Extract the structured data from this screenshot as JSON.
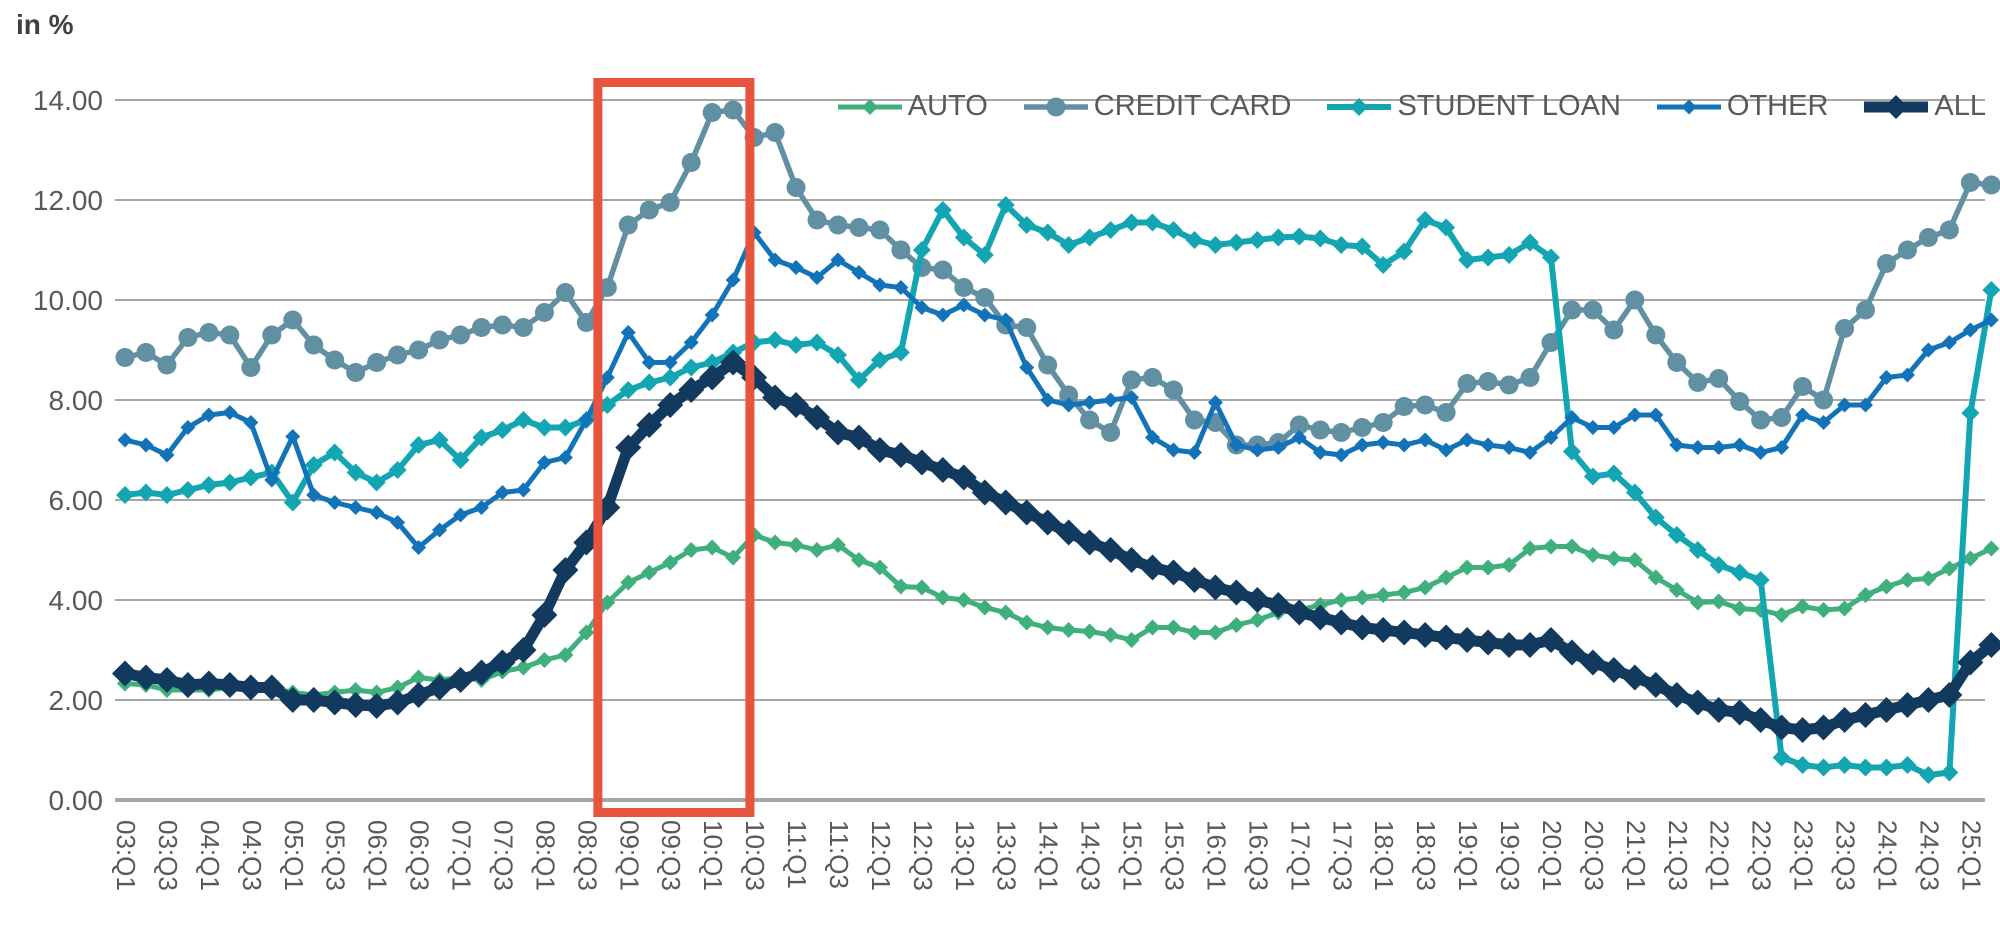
{
  "chart_data": {
    "type": "line",
    "title": "in %",
    "xlabel": "",
    "ylabel": "in %",
    "ylim": [
      0,
      14
    ],
    "grid": true,
    "legend_position": "top-right-inside",
    "grid_color": "#a6a6a6",
    "axis_text_color": "#595959",
    "y_tick_labels": [
      "0.00",
      "2.00",
      "4.00",
      "6.00",
      "8.00",
      "10.00",
      "12.00",
      "14.00"
    ],
    "categories": [
      "03:Q1",
      "03:Q2",
      "03:Q3",
      "03:Q4",
      "04:Q1",
      "04:Q2",
      "04:Q3",
      "04:Q4",
      "05:Q1",
      "05:Q2",
      "05:Q3",
      "05:Q4",
      "06:Q1",
      "06:Q2",
      "06:Q3",
      "06:Q4",
      "07:Q1",
      "07:Q2",
      "07:Q3",
      "07:Q4",
      "08:Q1",
      "08:Q2",
      "08:Q3",
      "08:Q4",
      "09:Q1",
      "09:Q2",
      "09:Q3",
      "09:Q4",
      "10:Q1",
      "10:Q2",
      "10:Q3",
      "10:Q4",
      "11:Q1",
      "11:Q2",
      "11:Q3",
      "11:Q4",
      "12:Q1",
      "12:Q2",
      "12:Q3",
      "12:Q4",
      "13:Q1",
      "13:Q2",
      "13:Q3",
      "13:Q4",
      "14:Q1",
      "14:Q2",
      "14:Q3",
      "14:Q4",
      "15:Q1",
      "15:Q2",
      "15:Q3",
      "15:Q4",
      "16:Q1",
      "16:Q2",
      "16:Q3",
      "16:Q4",
      "17:Q1",
      "17:Q2",
      "17:Q3",
      "17:Q4",
      "18:Q1",
      "18:Q2",
      "18:Q3",
      "18:Q4",
      "19:Q1",
      "19:Q2",
      "19:Q3",
      "19:Q4",
      "20:Q1",
      "20:Q2",
      "20:Q3",
      "20:Q4",
      "21:Q1",
      "21:Q2",
      "21:Q3",
      "21:Q4",
      "22:Q1",
      "22:Q2",
      "22:Q3",
      "22:Q4",
      "23:Q1",
      "23:Q2",
      "23:Q3",
      "23:Q4",
      "24:Q1",
      "24:Q2",
      "24:Q3",
      "24:Q4",
      "25:Q1",
      "25:Q2"
    ],
    "x_tick_every": 2,
    "series": [
      {
        "id": "auto",
        "name": "AUTO",
        "color": "#3fb07c",
        "marker": "diamond",
        "marker_size": 8,
        "line_width": 5,
        "values": [
          2.33,
          2.3,
          2.2,
          2.2,
          2.2,
          2.25,
          2.2,
          2.25,
          2.15,
          2.1,
          2.15,
          2.2,
          2.15,
          2.25,
          2.45,
          2.4,
          2.45,
          2.4,
          2.57,
          2.65,
          2.8,
          2.9,
          3.35,
          3.95,
          4.35,
          4.55,
          4.75,
          5.0,
          5.05,
          4.85,
          5.3,
          5.15,
          5.1,
          5.0,
          5.1,
          4.8,
          4.65,
          4.27,
          4.25,
          4.05,
          4.0,
          3.85,
          3.75,
          3.55,
          3.45,
          3.4,
          3.37,
          3.3,
          3.2,
          3.45,
          3.45,
          3.35,
          3.35,
          3.5,
          3.6,
          3.75,
          3.8,
          3.9,
          4.0,
          4.05,
          4.1,
          4.15,
          4.25,
          4.45,
          4.65,
          4.65,
          4.7,
          5.03,
          5.07,
          5.07,
          4.9,
          4.83,
          4.8,
          4.45,
          4.2,
          3.95,
          3.97,
          3.83,
          3.8,
          3.7,
          3.87,
          3.8,
          3.83,
          4.1,
          4.27,
          4.4,
          4.43,
          4.63,
          4.83,
          5.03
        ]
      },
      {
        "id": "credit-card",
        "name": "CREDIT CARD",
        "color": "#6190a3",
        "marker": "circle",
        "marker_size": 9.5,
        "line_width": 5.5,
        "values": [
          8.85,
          8.95,
          8.7,
          9.25,
          9.35,
          9.3,
          8.65,
          9.3,
          9.6,
          9.1,
          8.8,
          8.55,
          8.75,
          8.9,
          9.0,
          9.2,
          9.3,
          9.45,
          9.5,
          9.45,
          9.75,
          10.15,
          9.55,
          10.25,
          11.5,
          11.8,
          11.95,
          12.75,
          13.75,
          13.8,
          13.25,
          13.35,
          12.25,
          11.6,
          11.5,
          11.45,
          11.4,
          11.0,
          10.65,
          10.6,
          10.25,
          10.05,
          9.5,
          9.45,
          8.7,
          8.1,
          7.6,
          7.35,
          8.4,
          8.45,
          8.2,
          7.6,
          7.55,
          7.1,
          7.1,
          7.15,
          7.5,
          7.4,
          7.35,
          7.45,
          7.55,
          7.87,
          7.9,
          7.75,
          8.33,
          8.37,
          8.3,
          8.45,
          9.15,
          9.8,
          9.8,
          9.4,
          10.0,
          9.3,
          8.75,
          8.35,
          8.43,
          7.97,
          7.6,
          7.65,
          8.27,
          8.0,
          9.43,
          9.8,
          10.73,
          11.0,
          11.25,
          11.4,
          12.35,
          12.3
        ]
      },
      {
        "id": "student-loan",
        "name": "STUDENT LOAN",
        "color": "#14a5b3",
        "marker": "diamond",
        "marker_size": 9,
        "line_width": 6,
        "values": [
          6.1,
          6.15,
          6.1,
          6.2,
          6.3,
          6.35,
          6.45,
          6.55,
          5.95,
          6.7,
          6.95,
          6.55,
          6.35,
          6.6,
          7.1,
          7.2,
          6.8,
          7.25,
          7.4,
          7.6,
          7.45,
          7.45,
          7.6,
          7.9,
          8.2,
          8.35,
          8.45,
          8.65,
          8.75,
          8.95,
          9.15,
          9.2,
          9.1,
          9.15,
          8.9,
          8.4,
          8.8,
          8.95,
          11.0,
          11.8,
          11.25,
          10.9,
          11.9,
          11.5,
          11.35,
          11.1,
          11.25,
          11.4,
          11.55,
          11.55,
          11.4,
          11.2,
          11.1,
          11.15,
          11.2,
          11.25,
          11.27,
          11.23,
          11.1,
          11.07,
          10.7,
          10.97,
          11.6,
          11.45,
          10.8,
          10.85,
          10.9,
          11.15,
          10.85,
          6.97,
          6.47,
          6.53,
          6.15,
          5.65,
          5.3,
          5.0,
          4.7,
          4.55,
          4.4,
          0.85,
          0.7,
          0.65,
          0.7,
          0.65,
          0.65,
          0.7,
          0.5,
          0.55,
          7.74,
          10.2
        ]
      },
      {
        "id": "other",
        "name": "OTHER",
        "color": "#1273b8",
        "marker": "diamond",
        "marker_size": 7.5,
        "line_width": 5,
        "values": [
          7.2,
          7.1,
          6.9,
          7.45,
          7.7,
          7.75,
          7.55,
          6.4,
          7.27,
          6.1,
          5.95,
          5.85,
          5.75,
          5.55,
          5.05,
          5.4,
          5.7,
          5.85,
          6.15,
          6.2,
          6.75,
          6.85,
          7.6,
          8.45,
          9.35,
          8.75,
          8.75,
          9.15,
          9.7,
          10.4,
          11.35,
          10.8,
          10.65,
          10.45,
          10.8,
          10.55,
          10.3,
          10.25,
          9.85,
          9.7,
          9.9,
          9.7,
          9.6,
          8.65,
          8.0,
          7.9,
          7.95,
          8.0,
          8.05,
          7.25,
          7.0,
          6.95,
          7.95,
          7.1,
          7.0,
          7.05,
          7.25,
          6.95,
          6.9,
          7.1,
          7.15,
          7.1,
          7.2,
          7.0,
          7.2,
          7.1,
          7.05,
          6.95,
          7.25,
          7.65,
          7.45,
          7.45,
          7.7,
          7.7,
          7.1,
          7.05,
          7.05,
          7.1,
          6.95,
          7.05,
          7.7,
          7.55,
          7.9,
          7.9,
          8.45,
          8.5,
          9.0,
          9.15,
          9.4,
          9.6
        ]
      },
      {
        "id": "all",
        "name": "ALL",
        "color": "#123a5e",
        "marker": "diamond",
        "marker_size": 13,
        "line_width": 11,
        "values": [
          2.53,
          2.45,
          2.4,
          2.3,
          2.33,
          2.3,
          2.25,
          2.25,
          2.0,
          2.0,
          1.95,
          1.9,
          1.88,
          1.95,
          2.1,
          2.25,
          2.4,
          2.55,
          2.75,
          3.0,
          3.7,
          4.6,
          5.15,
          5.85,
          7.05,
          7.5,
          7.9,
          8.2,
          8.45,
          8.75,
          8.45,
          8.05,
          7.9,
          7.65,
          7.35,
          7.25,
          7.0,
          6.9,
          6.75,
          6.6,
          6.45,
          6.15,
          5.95,
          5.75,
          5.55,
          5.35,
          5.15,
          5.0,
          4.8,
          4.65,
          4.55,
          4.4,
          4.25,
          4.15,
          4.0,
          3.9,
          3.75,
          3.65,
          3.55,
          3.45,
          3.4,
          3.35,
          3.3,
          3.25,
          3.2,
          3.15,
          3.1,
          3.1,
          3.2,
          2.95,
          2.75,
          2.6,
          2.45,
          2.3,
          2.1,
          1.95,
          1.8,
          1.75,
          1.6,
          1.45,
          1.4,
          1.45,
          1.6,
          1.7,
          1.8,
          1.9,
          2.0,
          2.1,
          2.75,
          3.1
        ]
      }
    ],
    "highlight_box": {
      "color": "#e8533e",
      "start_index": 22.55,
      "end_index": 29.8,
      "top_value": 14.35,
      "bottom_value": -0.25,
      "note": "highlights 2008:Q4-2010:Q2 crisis peak period"
    }
  }
}
